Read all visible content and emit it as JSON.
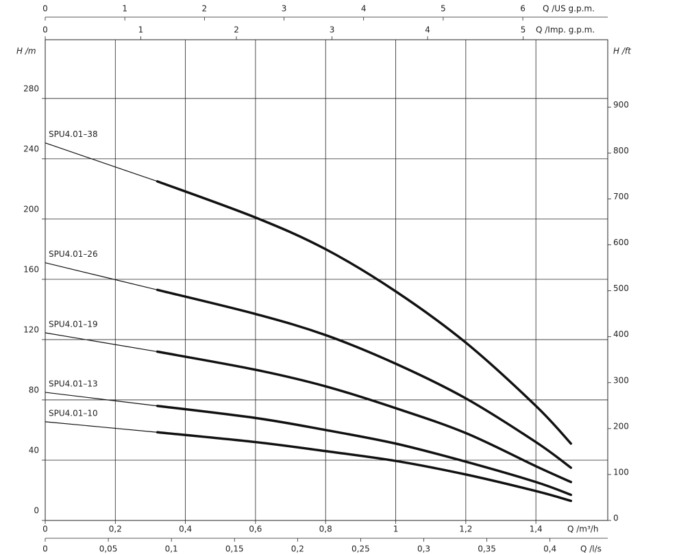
{
  "chart_data": {
    "type": "line",
    "ylabel": "H /m",
    "y2label": "H /ft",
    "xlabel": "Q /m³/h",
    "x2label": "Q /l/s",
    "x3label": "Q /US g.p.m.",
    "x4label": "Q /Imp. g.p.m.",
    "xlim": [
      0,
      1.605
    ],
    "xticks": [
      0,
      {
        "value": 0.2,
        "label": "0,2"
      },
      {
        "value": 0.4,
        "label": "0,4"
      },
      {
        "value": 0.6,
        "label": "0,6"
      },
      {
        "value": 0.8,
        "label": "0,8"
      },
      1,
      {
        "value": 1.2,
        "label": "1,2"
      },
      {
        "value": 1.4,
        "label": "1,4"
      }
    ],
    "x2lim": [
      0,
      0.4458
    ],
    "x2ticks": [
      0,
      {
        "value": 0.05,
        "label": "0,05"
      },
      {
        "value": 0.1,
        "label": "0,1"
      },
      {
        "value": 0.15,
        "label": "0,15"
      },
      {
        "value": 0.2,
        "label": "0,2"
      },
      {
        "value": 0.25,
        "label": "0,25"
      },
      {
        "value": 0.3,
        "label": "0,3"
      },
      {
        "value": 0.35,
        "label": "0,35"
      },
      {
        "value": 0.4,
        "label": "0,4"
      }
    ],
    "x3lim": [
      0,
      7.067
    ],
    "x3ticks": [
      0,
      1,
      2,
      3,
      4,
      5,
      6
    ],
    "x4lim": [
      0,
      5.885
    ],
    "x4ticks": [
      0,
      1,
      2,
      3,
      4,
      5
    ],
    "ylim": [
      0,
      319
    ],
    "yticks": [
      0,
      40,
      80,
      120,
      160,
      200,
      240,
      280
    ],
    "y2lim": [
      0,
      1046.6
    ],
    "y2ticks": [
      0,
      100,
      200,
      300,
      400,
      500,
      600,
      700,
      800,
      900
    ],
    "grid": true,
    "x": [
      0,
      0.32,
      0.6,
      0.8,
      1.0,
      1.2,
      1.4,
      1.5
    ],
    "series": [
      {
        "name": "SPU4.01–38",
        "color": "#111111",
        "values": [
          250.5,
          225,
          201,
          180,
          152,
          118,
          76,
          51
        ]
      },
      {
        "name": "SPU4.01–26",
        "color": "#111111",
        "values": [
          171,
          153,
          137,
          123,
          104,
          81,
          52,
          35
        ]
      },
      {
        "name": "SPU4.01–19",
        "color": "#111111",
        "values": [
          124.5,
          112,
          100,
          89,
          74.5,
          58,
          36,
          25.5
        ]
      },
      {
        "name": "SPU4.01–13",
        "color": "#111111",
        "values": [
          85,
          76,
          68,
          60,
          51,
          39,
          25.5,
          17
        ]
      },
      {
        "name": "SPU4.01–10",
        "color": "#111111",
        "values": [
          65.5,
          58.5,
          52,
          46,
          39.5,
          30.5,
          19.5,
          13
        ]
      }
    ]
  }
}
